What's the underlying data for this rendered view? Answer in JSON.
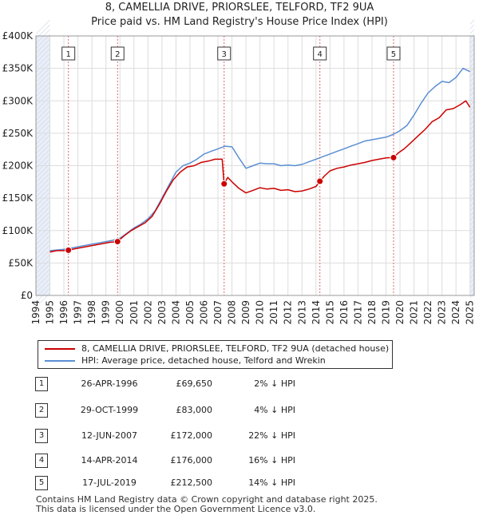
{
  "header": {
    "title": "8, CAMELLIA DRIVE, PRIORSLEE, TELFORD, TF2 9UA",
    "subtitle": "Price paid vs. HM Land Registry's House Price Index (HPI)"
  },
  "colors": {
    "property": "#cc0000",
    "hpi": "#5b8fd4",
    "shade": "#e9eef8",
    "vline": "#e06666"
  },
  "chart_data": {
    "type": "line",
    "title": "8, CAMELLIA DRIVE, PRIORSLEE, TELFORD, TF2 9UA",
    "subtitle": "Price paid vs. HM Land Registry's House Price Index (HPI)",
    "xlabel": "",
    "ylabel": "",
    "xlim": [
      1994,
      2025.3
    ],
    "ylim": [
      0,
      400000
    ],
    "x_ticks": [
      "1994",
      "1995",
      "1996",
      "1997",
      "1998",
      "1999",
      "2000",
      "2001",
      "2002",
      "2003",
      "2004",
      "2005",
      "2006",
      "2007",
      "2008",
      "2009",
      "2010",
      "2011",
      "2012",
      "2013",
      "2014",
      "2015",
      "2016",
      "2017",
      "2018",
      "2019",
      "2020",
      "2021",
      "2022",
      "2023",
      "2024",
      "2025"
    ],
    "y_ticks": [
      {
        "value": 0,
        "label": "£0"
      },
      {
        "value": 50000,
        "label": "£50K"
      },
      {
        "value": 100000,
        "label": "£100K"
      },
      {
        "value": 150000,
        "label": "£150K"
      },
      {
        "value": 200000,
        "label": "£200K"
      },
      {
        "value": 250000,
        "label": "£250K"
      },
      {
        "value": 300000,
        "label": "£300K"
      },
      {
        "value": 350000,
        "label": "£350K"
      },
      {
        "value": 400000,
        "label": "£400K"
      }
    ],
    "shaded_ranges": [
      [
        1994,
        1995
      ],
      [
        2025,
        2025.3
      ]
    ],
    "series": [
      {
        "name": "8, CAMELLIA DRIVE, PRIORSLEE, TELFORD, TF2 9UA (detached house)",
        "color": "#cc0000",
        "x": [
          1995,
          1995.5,
          1996,
          1996.32,
          1996.8,
          1997.3,
          1997.8,
          1998.3,
          1998.8,
          1999.3,
          1999.83,
          2000.3,
          2000.8,
          2001.3,
          2001.8,
          2002.3,
          2002.8,
          2003.3,
          2003.8,
          2004.3,
          2004.8,
          2005.3,
          2005.8,
          2006.3,
          2006.8,
          2007.3,
          2007.44,
          2007.7,
          2008,
          2008.5,
          2009,
          2009.5,
          2010,
          2010.5,
          2011,
          2011.5,
          2012,
          2012.5,
          2013,
          2013.5,
          2014,
          2014.28,
          2014.6,
          2015,
          2015.5,
          2016,
          2016.5,
          2017,
          2017.5,
          2018,
          2018.5,
          2019,
          2019.54,
          2019.9,
          2020.3,
          2020.8,
          2021.3,
          2021.8,
          2022.3,
          2022.8,
          2023.3,
          2023.8,
          2024.3,
          2024.7,
          2025
        ],
        "y": [
          67000,
          69000,
          69000,
          69650,
          72000,
          74000,
          76000,
          78000,
          80000,
          82000,
          83000,
          92000,
          100000,
          106000,
          112000,
          122000,
          140000,
          160000,
          178000,
          190000,
          198000,
          200000,
          205000,
          207000,
          210000,
          210000,
          172000,
          182000,
          175000,
          165000,
          158000,
          162000,
          166000,
          164000,
          165000,
          162000,
          163000,
          160000,
          161000,
          164000,
          168000,
          176000,
          184000,
          192000,
          196000,
          198000,
          201000,
          203000,
          205000,
          208000,
          210000,
          212000,
          212500,
          220000,
          226000,
          236000,
          246000,
          256000,
          268000,
          274000,
          286000,
          288000,
          294000,
          300000,
          290000
        ]
      },
      {
        "name": "HPI: Average price, detached house, Telford and Wrekin",
        "color": "#5b8fd4",
        "x": [
          1995,
          1995.5,
          1996,
          1996.5,
          1997,
          1997.5,
          1998,
          1998.5,
          1999,
          1999.5,
          2000,
          2000.5,
          2001,
          2001.5,
          2002,
          2002.5,
          2003,
          2003.5,
          2004,
          2004.5,
          2005,
          2005.5,
          2006,
          2006.5,
          2007,
          2007.5,
          2008,
          2008.5,
          2009,
          2009.5,
          2010,
          2010.5,
          2011,
          2011.5,
          2012,
          2012.5,
          2013,
          2013.5,
          2014,
          2014.5,
          2015,
          2015.5,
          2016,
          2016.5,
          2017,
          2017.5,
          2018,
          2018.5,
          2019,
          2019.5,
          2020,
          2020.5,
          2021,
          2021.5,
          2022,
          2022.5,
          2023,
          2023.5,
          2024,
          2024.5,
          2025
        ],
        "y": [
          69000,
          70000,
          71000,
          73000,
          75000,
          77000,
          79000,
          81000,
          83000,
          85000,
          88000,
          96000,
          104000,
          110000,
          118000,
          130000,
          150000,
          170000,
          190000,
          200000,
          204000,
          210000,
          218000,
          222000,
          226000,
          230000,
          229000,
          212000,
          196000,
          200000,
          204000,
          203000,
          203000,
          200000,
          201000,
          200000,
          202000,
          206000,
          210000,
          214000,
          218000,
          222000,
          226000,
          230000,
          234000,
          238000,
          240000,
          242000,
          244000,
          248000,
          254000,
          262000,
          278000,
          296000,
          312000,
          322000,
          330000,
          328000,
          336000,
          350000,
          345000
        ]
      }
    ],
    "sales": [
      {
        "num": "1",
        "x": 1996.32,
        "price": 69650
      },
      {
        "num": "2",
        "x": 1999.83,
        "price": 83000
      },
      {
        "num": "3",
        "x": 2007.44,
        "price": 172000
      },
      {
        "num": "4",
        "x": 2014.28,
        "price": 176000
      },
      {
        "num": "5",
        "x": 2019.54,
        "price": 212500
      }
    ]
  },
  "legend": {
    "property": "8, CAMELLIA DRIVE, PRIORSLEE, TELFORD, TF2 9UA (detached house)",
    "hpi": "HPI: Average price, detached house, Telford and Wrekin"
  },
  "sales_table": [
    {
      "num": "1",
      "date": "26-APR-1996",
      "price": "£69,650",
      "hpi": "2% ↓ HPI"
    },
    {
      "num": "2",
      "date": "29-OCT-1999",
      "price": "£83,000",
      "hpi": "4% ↓ HPI"
    },
    {
      "num": "3",
      "date": "12-JUN-2007",
      "price": "£172,000",
      "hpi": "22% ↓ HPI"
    },
    {
      "num": "4",
      "date": "14-APR-2014",
      "price": "£176,000",
      "hpi": "16% ↓ HPI"
    },
    {
      "num": "5",
      "date": "17-JUL-2019",
      "price": "£212,500",
      "hpi": "14% ↓ HPI"
    }
  ],
  "footer": {
    "line1": "Contains HM Land Registry data © Crown copyright and database right 2025.",
    "line2": "This data is licensed under the Open Government Licence v3.0."
  }
}
